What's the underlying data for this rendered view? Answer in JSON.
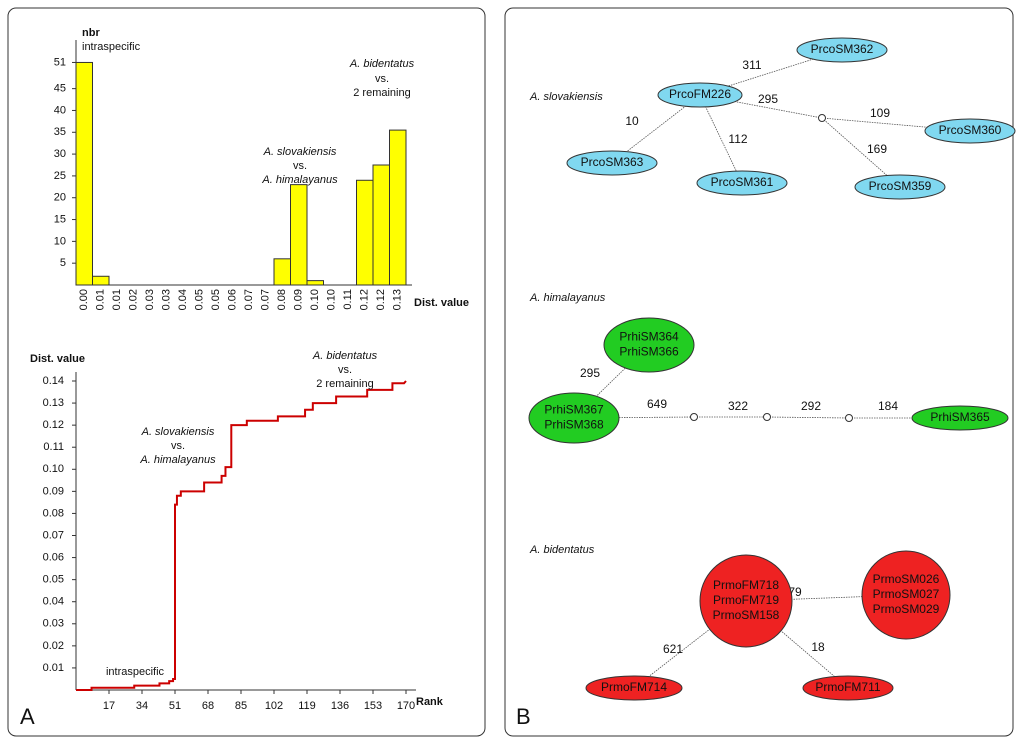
{
  "chart_data": [
    {
      "type": "bar",
      "y_label": "nbr",
      "x_label": "Dist. value",
      "categories": [
        "0.00",
        "0.01",
        "0.01",
        "0.02",
        "0.03",
        "0.03",
        "0.04",
        "0.05",
        "0.05",
        "0.06",
        "0.07",
        "0.07",
        "0.08",
        "0.09",
        "0.10",
        "0.10",
        "0.11",
        "0.12",
        "0.12",
        "0.13"
      ],
      "values": [
        51,
        2,
        0,
        0,
        0,
        0,
        0,
        0,
        0,
        0,
        0,
        0,
        6,
        23,
        1,
        0,
        0,
        24,
        27.5,
        35.5
      ],
      "color": "#ffff00",
      "ylim": [
        0,
        55
      ],
      "yticks": [
        5,
        10,
        15,
        20,
        25,
        30,
        35,
        40,
        45,
        51
      ],
      "annotations": [
        "intraspecific",
        "A. slovakiensis",
        "vs.",
        "A. himalayanus",
        "A. bidentatus",
        "vs.",
        "2 remaining"
      ]
    },
    {
      "type": "line",
      "y_label": "Dist. value",
      "x_label": "Rank",
      "color": "#cc0000",
      "x": [
        0,
        8,
        8,
        30,
        30,
        43,
        43,
        48,
        48,
        50,
        50,
        51,
        51,
        52,
        52,
        54,
        54,
        66,
        66,
        75,
        75,
        77,
        77,
        80,
        80,
        88,
        88,
        104,
        104,
        118,
        118,
        122,
        122,
        134,
        134,
        150,
        150,
        163,
        163,
        169,
        170
      ],
      "values": [
        0,
        0,
        0.001,
        0.001,
        0.002,
        0.002,
        0.003,
        0.003,
        0.004,
        0.004,
        0.005,
        0.005,
        0.084,
        0.084,
        0.088,
        0.088,
        0.09,
        0.09,
        0.094,
        0.094,
        0.097,
        0.097,
        0.101,
        0.101,
        0.12,
        0.12,
        0.122,
        0.122,
        0.124,
        0.124,
        0.127,
        0.127,
        0.13,
        0.13,
        0.133,
        0.133,
        0.136,
        0.136,
        0.139,
        0.139,
        0.14
      ],
      "xlim": [
        0,
        170
      ],
      "xticks": [
        17,
        34,
        51,
        68,
        85,
        102,
        119,
        136,
        153,
        170
      ],
      "ylim": [
        0,
        0.14
      ],
      "yticks": [
        0.01,
        0.02,
        0.03,
        0.04,
        0.05,
        0.06,
        0.07,
        0.08,
        0.09,
        {
          "value": 0.1,
          "label": "0.10"
        },
        0.11,
        0.12,
        0.13,
        0.14
      ],
      "annotations": [
        "intraspecific",
        "A. slovakiensis",
        "vs.",
        "A. himalayanus",
        "A. bidentatus",
        "vs.",
        "2 remaining"
      ]
    }
  ],
  "panel_labels": [
    "A",
    "B"
  ],
  "diagram": {
    "groups": [
      {
        "label": "A. slovakiensis",
        "color": "#80d8f0",
        "nodes": [
          {
            "lines": [
              "PrcoSM362"
            ]
          },
          {
            "lines": [
              "PrcoFM226"
            ]
          },
          {
            "lines": [
              "PrcoSM363"
            ]
          },
          {
            "lines": [
              "PrcoSM361"
            ]
          },
          {
            "lines": [
              "PrcoSM359"
            ]
          },
          {
            "lines": [
              "PrcoSM360"
            ]
          }
        ],
        "edges": [
          {
            "label": 311
          },
          {
            "label": 10
          },
          {
            "label": 112
          },
          {
            "label": 295
          },
          {
            "label": 109
          },
          {
            "label": 169
          }
        ]
      },
      {
        "label": "A. himalayanus",
        "color": "#22cc22",
        "nodes": [
          {
            "lines": [
              "PrhiSM364",
              "PrhiSM366"
            ]
          },
          {
            "lines": [
              "PrhiSM367",
              "PrhiSM368"
            ]
          },
          {
            "lines": [
              "PrhiSM365"
            ]
          }
        ],
        "edges": [
          {
            "label": 295
          },
          {
            "label": 649
          },
          {
            "label": 322
          },
          {
            "label": 292
          },
          {
            "label": 184
          }
        ]
      },
      {
        "label": "A. bidentatus",
        "color": "#ee2222",
        "nodes": [
          {
            "lines": [
              "PrmoFM718",
              "PrmoFM719",
              "PrmoSM158"
            ]
          },
          {
            "lines": [
              "PrmoSM026",
              "PrmoSM027",
              "PrmoSM029"
            ]
          },
          {
            "lines": [
              "PrmoFM714"
            ]
          },
          {
            "lines": [
              "PrmoFM711"
            ]
          }
        ],
        "edges": [
          {
            "label": 79
          },
          {
            "label": 621
          },
          {
            "label": 18
          }
        ]
      }
    ]
  }
}
